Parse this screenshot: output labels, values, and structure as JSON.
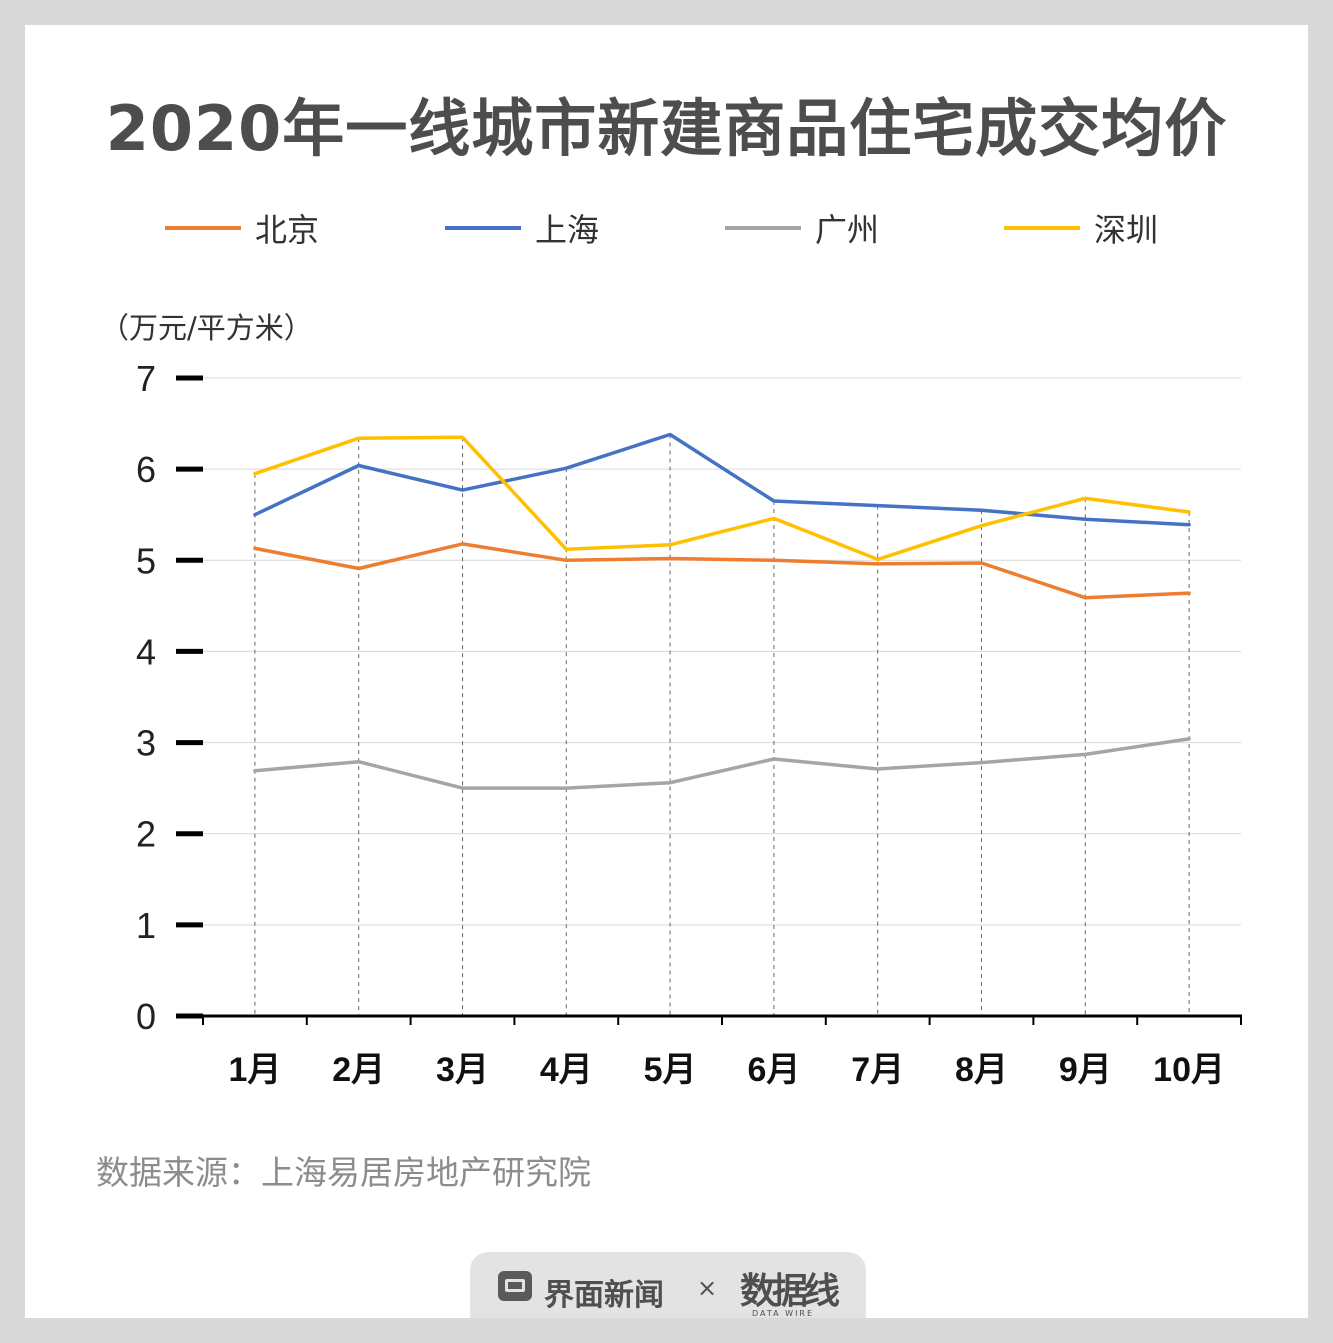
{
  "title": "2020年一线城市新建商品住宅成交均价",
  "unit_label": "（万元/平方米）",
  "source": "数据来源：上海易居房地产研究院",
  "footer": {
    "brand1": "界面新闻",
    "separator": "×",
    "brand2": "数据线",
    "brand2_sub": "DATA WIRE"
  },
  "chart_data": {
    "type": "line",
    "title": "2020年一线城市新建商品住宅成交均价",
    "ylabel": "（万元/平方米）",
    "xlabel": "",
    "categories": [
      "1月",
      "2月",
      "3月",
      "4月",
      "5月",
      "6月",
      "7月",
      "8月",
      "9月",
      "10月"
    ],
    "ylim": [
      0,
      7
    ],
    "yticks": [
      0,
      1,
      2,
      3,
      4,
      5,
      6,
      7
    ],
    "grid": true,
    "legend_position": "top",
    "series": [
      {
        "name": "北京",
        "color": "#ed7d31",
        "values": [
          5.13,
          4.91,
          5.18,
          5.0,
          5.02,
          5.0,
          4.96,
          4.97,
          4.59,
          4.64
        ]
      },
      {
        "name": "上海",
        "color": "#4472c4",
        "values": [
          5.5,
          6.04,
          5.77,
          6.01,
          6.38,
          5.65,
          5.6,
          5.55,
          5.45,
          5.39
        ]
      },
      {
        "name": "广州",
        "color": "#a5a5a5",
        "values": [
          2.69,
          2.79,
          2.5,
          2.5,
          2.56,
          2.82,
          2.71,
          2.78,
          2.87,
          3.04
        ]
      },
      {
        "name": "深圳",
        "color": "#ffc000",
        "values": [
          5.95,
          6.34,
          6.35,
          5.12,
          5.17,
          5.46,
          5.01,
          5.38,
          5.68,
          5.53
        ]
      }
    ]
  }
}
